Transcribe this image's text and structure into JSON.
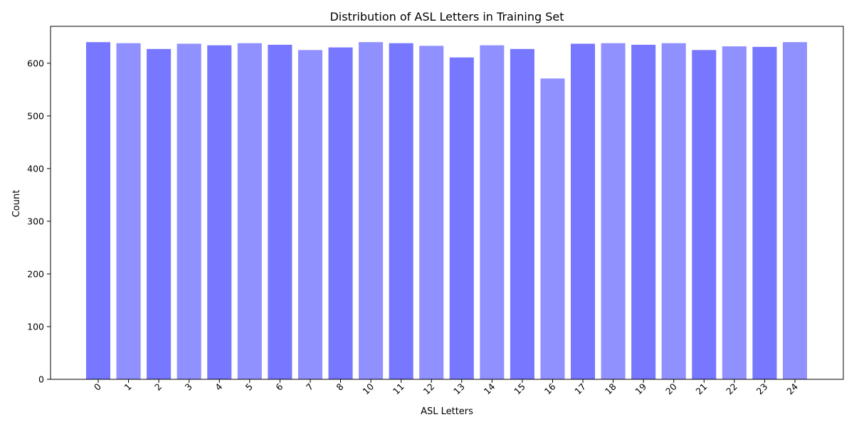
{
  "chart_data": {
    "type": "bar",
    "title": "Distribution of ASL Letters in Training Set",
    "xlabel": "ASL Letters",
    "ylabel": "Count",
    "categories": [
      "0",
      "1",
      "2",
      "3",
      "4",
      "5",
      "6",
      "7",
      "8",
      "10",
      "11",
      "12",
      "13",
      "14",
      "15",
      "16",
      "17",
      "18",
      "19",
      "20",
      "21",
      "22",
      "23",
      "24"
    ],
    "values": [
      640,
      638,
      627,
      637,
      634,
      638,
      635,
      625,
      630,
      640,
      638,
      633,
      611,
      634,
      627,
      571,
      637,
      638,
      635,
      638,
      625,
      632,
      631,
      640
    ],
    "ylim": [
      0,
      670
    ],
    "yticks": [
      0,
      100,
      200,
      300,
      400,
      500,
      600
    ],
    "grid": false,
    "legend": "none",
    "colors": [
      "#7777ff",
      "#9090ff"
    ]
  }
}
